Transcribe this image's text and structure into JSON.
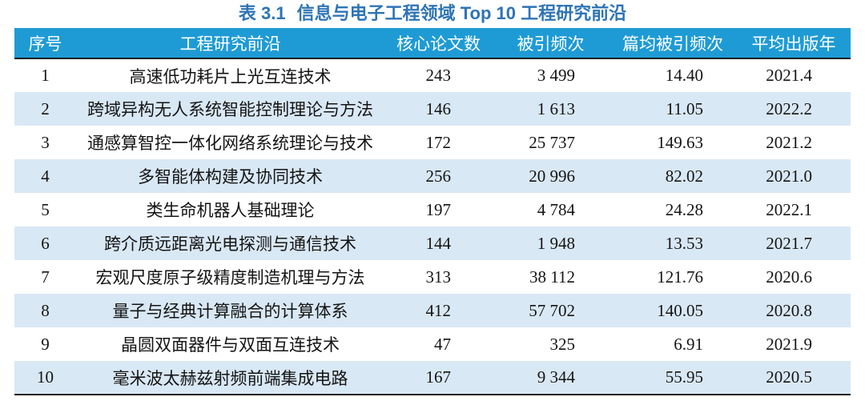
{
  "title": {
    "number": "表 3.1",
    "text": "信息与电子工程领域 Top 10 工程研究前沿"
  },
  "table": {
    "columns": [
      {
        "label": "序号"
      },
      {
        "label": "工程研究前沿"
      },
      {
        "label": "核心论文数"
      },
      {
        "label": "被引频次"
      },
      {
        "label": "篇均被引频次"
      },
      {
        "label": "平均出版年"
      }
    ],
    "rows": [
      [
        "1",
        "高速低功耗片上光互连技术",
        "243",
        "3 499",
        "14.40",
        "2021.4"
      ],
      [
        "2",
        "跨域异构无人系统智能控制理论与方法",
        "146",
        "1 613",
        "11.05",
        "2022.2"
      ],
      [
        "3",
        "通感算智控一体化网络系统理论与技术",
        "172",
        "25 737",
        "149.63",
        "2021.2"
      ],
      [
        "4",
        "多智能体构建及协同技术",
        "256",
        "20 996",
        "82.02",
        "2021.0"
      ],
      [
        "5",
        "类生命机器人基础理论",
        "197",
        "4 784",
        "24.28",
        "2022.1"
      ],
      [
        "6",
        "跨介质远距离光电探测与通信技术",
        "144",
        "1 948",
        "13.53",
        "2021.7"
      ],
      [
        "7",
        "宏观尺度原子级精度制造机理与方法",
        "313",
        "38 112",
        "121.76",
        "2020.6"
      ],
      [
        "8",
        "量子与经典计算融合的计算体系",
        "412",
        "57 702",
        "140.05",
        "2020.8"
      ],
      [
        "9",
        "晶圆双面器件与双面互连技术",
        "47",
        "325",
        "6.91",
        "2021.9"
      ],
      [
        "10",
        "毫米波太赫兹射频前端集成电路",
        "167",
        "9 344",
        "55.95",
        "2020.5"
      ]
    ]
  },
  "colors": {
    "header_bg": "#1e9bd5",
    "header_text": "#ffffff",
    "alt_row_bg": "#d9e8f5",
    "title_text": "#2e74b5",
    "rule": "#1b1b1b"
  }
}
